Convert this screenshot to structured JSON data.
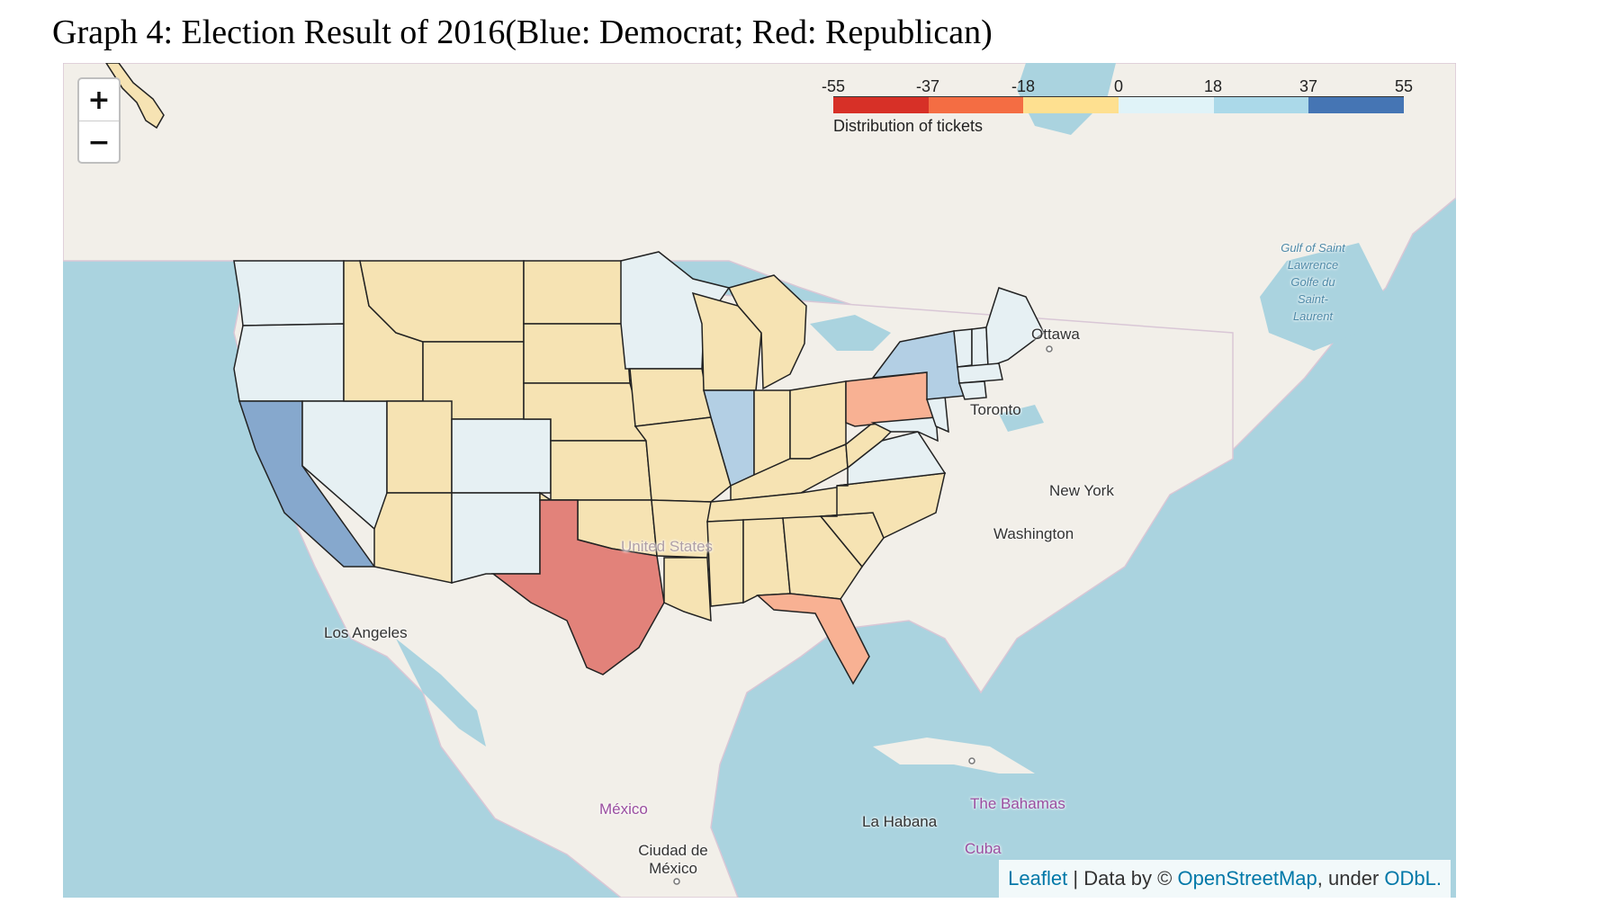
{
  "caption": "Graph 4: Election Result of 2016(Blue: Democrat; Red: Republican)",
  "zoom": {
    "in_label": "+",
    "out_label": "−"
  },
  "legend": {
    "ticks": [
      "-55",
      "-37",
      "-18",
      "0",
      "18",
      "37",
      "55"
    ],
    "caption": "Distribution of tickets",
    "colors": [
      "#d73027",
      "#f46d43",
      "#fee090",
      "#e0f3f8",
      "#abd9e9",
      "#4575b4"
    ]
  },
  "places": {
    "ottawa": "Ottawa",
    "toronto": "Toronto",
    "new_york": "New York",
    "washington": "Washington",
    "united_states": "United States",
    "los_angeles": "Los Angeles",
    "mexico": "México",
    "ciudad_de_mexico": "Ciudad de México",
    "la_habana": "La Habana",
    "the_bahamas": "The Bahamas",
    "cuba": "Cuba",
    "gulf": "Gulf of Saint Lawrence Golfe du Saint-Laurent"
  },
  "attribution": {
    "leaflet": "Leaflet",
    "separator": "|",
    "data_by": "Data by ©",
    "osm": "OpenStreetMap",
    "under": ", under",
    "odbl": "ODbL."
  },
  "state_colors": {
    "red": "#e2827a",
    "orange": "#f8b193",
    "yellow": "#f6e3b3",
    "lightblue": "#e6f0f3",
    "blue": "#b3cfe4",
    "darkblue": "#86a8cd"
  }
}
